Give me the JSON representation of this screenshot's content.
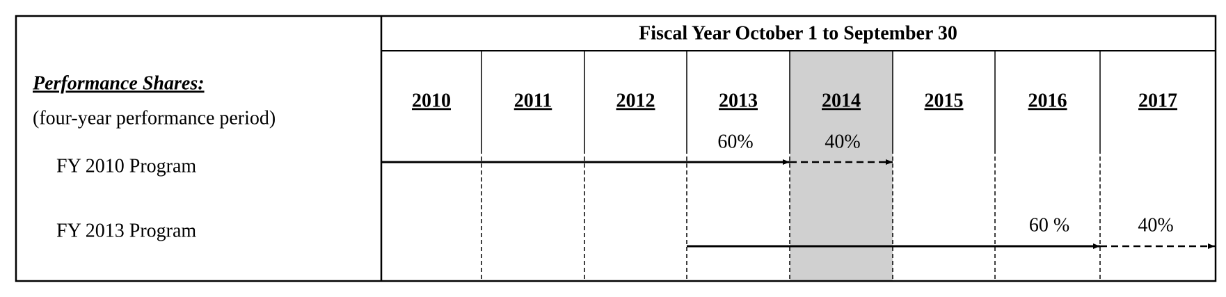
{
  "header": {
    "title": "Fiscal Year October 1 to September 30"
  },
  "left": {
    "heading": "Performance Shares:",
    "subheading": "(four-year performance period)"
  },
  "years": [
    "2010",
    "2011",
    "2012",
    "2013",
    "2014",
    "2015",
    "2016",
    "2017"
  ],
  "programs": [
    {
      "label": "FY 2010 Program",
      "first_label": "60%",
      "second_label": "40%"
    },
    {
      "label": "FY 2013 Program",
      "first_label": "60 %",
      "second_label": "40%"
    }
  ]
}
